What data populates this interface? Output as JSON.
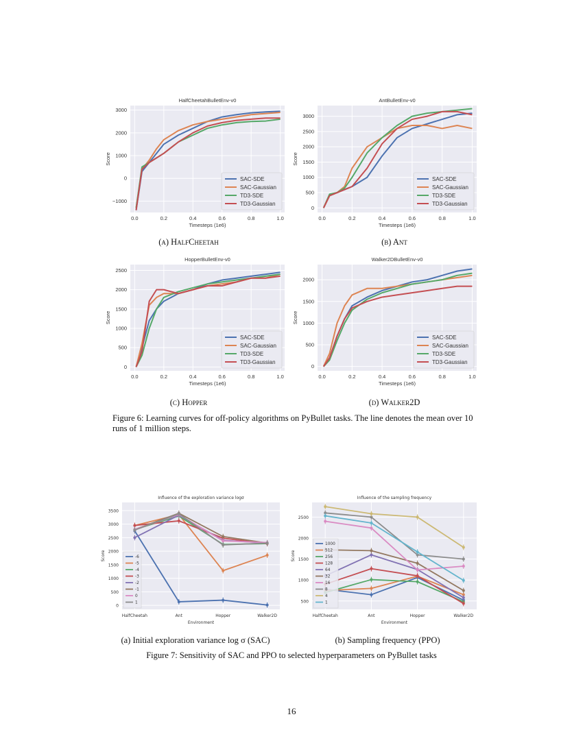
{
  "figure6": {
    "subcaptions": [
      "(a) HalfCheetah",
      "(b) Ant",
      "(c) Hopper",
      "(d) Walker2D"
    ],
    "caption": "Figure 6: Learning curves for off-policy algorithms on PyBullet tasks. The line denotes the mean over 10 runs of 1 million steps."
  },
  "figure7": {
    "subcaptions": [
      "(a) Initial exploration variance log σ (SAC)",
      "(b) Sampling frequency (PPO)"
    ],
    "caption": "Figure 7: Sensitivity of SAC and PPO to selected hyperparameters on PyBullet tasks"
  },
  "page_number": "16",
  "colors": [
    "#4c72b0",
    "#dd8452",
    "#55a868",
    "#c44e52",
    "#8172b3",
    "#937860",
    "#da8bc3",
    "#8c8c8c",
    "#ccb974",
    "#64b5cd"
  ],
  "chart_data": [
    {
      "type": "line",
      "title": "HalfCheetahBulletEnv-v0",
      "xlabel": "Timesteps (1e6)",
      "ylabel": "Score",
      "xlim": [
        -0.03,
        1.03
      ],
      "ylim": [
        -1500,
        3200
      ],
      "grid": true,
      "legend": "bottom-right",
      "xticks": [
        0.0,
        0.2,
        0.4,
        0.6,
        0.8,
        1.0
      ],
      "xtick_labels": [
        "0.0",
        "0.2",
        "0.4",
        "0.6",
        "0.8",
        "1.0"
      ],
      "yticks": [
        -1000,
        0,
        1000,
        2000,
        3000
      ],
      "ytick_labels": [
        "−1000",
        "0",
        "1000",
        "2000",
        "3000"
      ],
      "x": [
        0.01,
        0.05,
        0.1,
        0.15,
        0.2,
        0.3,
        0.4,
        0.5,
        0.6,
        0.7,
        0.8,
        0.9,
        1.0
      ],
      "series": [
        {
          "name": "SAC-SDE",
          "values": [
            -1400,
            300,
            700,
            1100,
            1500,
            1900,
            2200,
            2500,
            2700,
            2800,
            2880,
            2920,
            2950
          ]
        },
        {
          "name": "SAC-Gaussian",
          "values": [
            -1300,
            400,
            800,
            1300,
            1700,
            2100,
            2350,
            2500,
            2600,
            2700,
            2800,
            2850,
            2900
          ]
        },
        {
          "name": "TD3-SDE",
          "values": [
            -1300,
            500,
            700,
            900,
            1100,
            1600,
            1900,
            2200,
            2350,
            2450,
            2500,
            2520,
            2600
          ]
        },
        {
          "name": "TD3-Gaussian",
          "values": [
            -1400,
            400,
            700,
            900,
            1100,
            1600,
            2000,
            2300,
            2450,
            2550,
            2600,
            2650,
            2650
          ]
        }
      ]
    },
    {
      "type": "line",
      "title": "AntBulletEnv-v0",
      "xlabel": "Timesteps (1e6)",
      "ylabel": "Score",
      "xlim": [
        -0.03,
        1.03
      ],
      "ylim": [
        -150,
        3350
      ],
      "grid": true,
      "legend": "bottom-right",
      "xticks": [
        0.0,
        0.2,
        0.4,
        0.6,
        0.8,
        1.0
      ],
      "xtick_labels": [
        "0.0",
        "0.2",
        "0.4",
        "0.6",
        "0.8",
        "1.0"
      ],
      "yticks": [
        0,
        500,
        1000,
        1500,
        2000,
        2500,
        3000
      ],
      "ytick_labels": [
        "0",
        "500",
        "1000",
        "1500",
        "2000",
        "2500",
        "3000"
      ],
      "x": [
        0.01,
        0.05,
        0.1,
        0.15,
        0.2,
        0.3,
        0.4,
        0.5,
        0.6,
        0.7,
        0.8,
        0.9,
        1.0
      ],
      "series": [
        {
          "name": "SAC-SDE",
          "values": [
            0,
            400,
            500,
            600,
            700,
            1000,
            1700,
            2300,
            2600,
            2750,
            2900,
            3050,
            3100
          ]
        },
        {
          "name": "SAC-Gaussian",
          "values": [
            0,
            400,
            500,
            700,
            1300,
            2000,
            2300,
            2600,
            2700,
            2700,
            2600,
            2700,
            2600
          ]
        },
        {
          "name": "TD3-SDE",
          "values": [
            0,
            450,
            500,
            650,
            1000,
            1800,
            2300,
            2700,
            3000,
            3100,
            3150,
            3200,
            3250
          ]
        },
        {
          "name": "TD3-Gaussian",
          "values": [
            0,
            400,
            500,
            600,
            700,
            1300,
            2100,
            2600,
            2900,
            3000,
            3150,
            3150,
            3050
          ]
        }
      ]
    },
    {
      "type": "line",
      "title": "HopperBulletEnv-v0",
      "xlabel": "Timesteps (1e6)",
      "ylabel": "Score",
      "xlim": [
        -0.03,
        1.03
      ],
      "ylim": [
        -100,
        2650
      ],
      "grid": true,
      "legend": "bottom-right",
      "xticks": [
        0.0,
        0.2,
        0.4,
        0.6,
        0.8,
        1.0
      ],
      "xtick_labels": [
        "0.0",
        "0.2",
        "0.4",
        "0.6",
        "0.8",
        "1.0"
      ],
      "yticks": [
        0,
        500,
        1000,
        1500,
        2000,
        2500
      ],
      "ytick_labels": [
        "0",
        "500",
        "1000",
        "1500",
        "2000",
        "2500"
      ],
      "x": [
        0.01,
        0.05,
        0.1,
        0.15,
        0.2,
        0.3,
        0.4,
        0.5,
        0.6,
        0.7,
        0.8,
        0.9,
        1.0
      ],
      "series": [
        {
          "name": "SAC-SDE",
          "values": [
            0,
            500,
            1200,
            1500,
            1700,
            1900,
            2000,
            2150,
            2250,
            2300,
            2350,
            2400,
            2450
          ]
        },
        {
          "name": "SAC-Gaussian",
          "values": [
            0,
            600,
            1600,
            1800,
            1900,
            1900,
            2000,
            2100,
            2150,
            2200,
            2300,
            2300,
            2400
          ]
        },
        {
          "name": "TD3-SDE",
          "values": [
            0,
            300,
            1000,
            1500,
            1800,
            1950,
            2050,
            2150,
            2200,
            2250,
            2300,
            2350,
            2400
          ]
        },
        {
          "name": "TD3-Gaussian",
          "values": [
            0,
            400,
            1700,
            2000,
            2000,
            1900,
            2000,
            2100,
            2100,
            2200,
            2300,
            2300,
            2350
          ]
        }
      ]
    },
    {
      "type": "line",
      "title": "Walker2DBulletEnv-v0",
      "xlabel": "Timesteps (1e6)",
      "ylabel": "Score",
      "xlim": [
        -0.03,
        1.03
      ],
      "ylim": [
        -100,
        2350
      ],
      "grid": true,
      "legend": "bottom-right",
      "xticks": [
        0.0,
        0.2,
        0.4,
        0.6,
        0.8,
        1.0
      ],
      "xtick_labels": [
        "0.0",
        "0.2",
        "0.4",
        "0.6",
        "0.8",
        "1.0"
      ],
      "yticks": [
        0,
        500,
        1000,
        1500,
        2000
      ],
      "ytick_labels": [
        "0",
        "500",
        "1000",
        "1500",
        "2000"
      ],
      "x": [
        0.01,
        0.05,
        0.1,
        0.15,
        0.2,
        0.3,
        0.4,
        0.5,
        0.6,
        0.7,
        0.8,
        0.9,
        1.0
      ],
      "series": [
        {
          "name": "SAC-SDE",
          "values": [
            0,
            200,
            700,
            1100,
            1400,
            1600,
            1750,
            1850,
            1950,
            2000,
            2100,
            2200,
            2250
          ]
        },
        {
          "name": "SAC-Gaussian",
          "values": [
            0,
            300,
            1000,
            1400,
            1650,
            1800,
            1800,
            1850,
            1900,
            1950,
            2000,
            2050,
            2100
          ]
        },
        {
          "name": "TD3-SDE",
          "values": [
            0,
            150,
            600,
            1000,
            1300,
            1550,
            1700,
            1800,
            1900,
            1950,
            2000,
            2100,
            2150
          ]
        },
        {
          "name": "TD3-Gaussian",
          "values": [
            0,
            200,
            700,
            1100,
            1350,
            1500,
            1600,
            1650,
            1700,
            1750,
            1800,
            1850,
            1850
          ]
        }
      ]
    },
    {
      "type": "line",
      "title": "Influence of the exploration variance logσ",
      "xlabel": "Environment",
      "ylabel": "Score",
      "categories": [
        "HalfCheetah",
        "Ant",
        "Hopper",
        "Walker2D"
      ],
      "ylim": [
        -150,
        3800
      ],
      "grid": true,
      "legend": "left",
      "yticks": [
        0,
        500,
        1000,
        1500,
        2000,
        2500,
        3000,
        3500
      ],
      "ytick_labels": [
        "0",
        "500",
        "1000",
        "1500",
        "2000",
        "2500",
        "3000",
        "3500"
      ],
      "series": [
        {
          "name": "-6",
          "values": [
            2750,
            130,
            190,
            10
          ]
        },
        {
          "name": "-5",
          "values": [
            2950,
            3350,
            1280,
            1850
          ]
        },
        {
          "name": "-4",
          "values": [
            2800,
            3300,
            2250,
            2280
          ]
        },
        {
          "name": "-3",
          "values": [
            2950,
            3120,
            2480,
            2280
          ]
        },
        {
          "name": "-2",
          "values": [
            2500,
            3330,
            2400,
            2300
          ]
        },
        {
          "name": "-1",
          "values": [
            2800,
            3400,
            2540,
            2300
          ]
        },
        {
          "name": "0",
          "values": [
            2800,
            3350,
            2380,
            2320
          ]
        },
        {
          "name": "1",
          "values": [
            2780,
            3380,
            2230,
            2300
          ]
        }
      ]
    },
    {
      "type": "line",
      "title": "Influence of the sampling frequency",
      "xlabel": "Environment",
      "ylabel": "Score",
      "categories": [
        "HalfCheetah",
        "Ant",
        "Hopper",
        "Walker2D"
      ],
      "ylim": [
        300,
        2850
      ],
      "grid": true,
      "legend": "left",
      "yticks": [
        500,
        1000,
        1500,
        2000,
        2500
      ],
      "ytick_labels": [
        "500",
        "1000",
        "1500",
        "2000",
        "2500"
      ],
      "series": [
        {
          "name": "1000",
          "values": [
            780,
            650,
            1060,
            520
          ]
        },
        {
          "name": "512",
          "values": [
            750,
            800,
            1090,
            650
          ]
        },
        {
          "name": "256",
          "values": [
            700,
            1010,
            960,
            480
          ]
        },
        {
          "name": "128",
          "values": [
            900,
            1270,
            1100,
            440
          ]
        },
        {
          "name": "64",
          "values": [
            1100,
            1600,
            1250,
            580
          ]
        },
        {
          "name": "32",
          "values": [
            1720,
            1700,
            1400,
            750
          ]
        },
        {
          "name": "16",
          "values": [
            2400,
            2240,
            1240,
            1330
          ]
        },
        {
          "name": "8",
          "values": [
            2600,
            2500,
            1600,
            1500
          ]
        },
        {
          "name": "4",
          "values": [
            2750,
            2580,
            2500,
            1780
          ]
        },
        {
          "name": "1",
          "values": [
            2530,
            2360,
            1670,
            990
          ]
        }
      ]
    }
  ]
}
